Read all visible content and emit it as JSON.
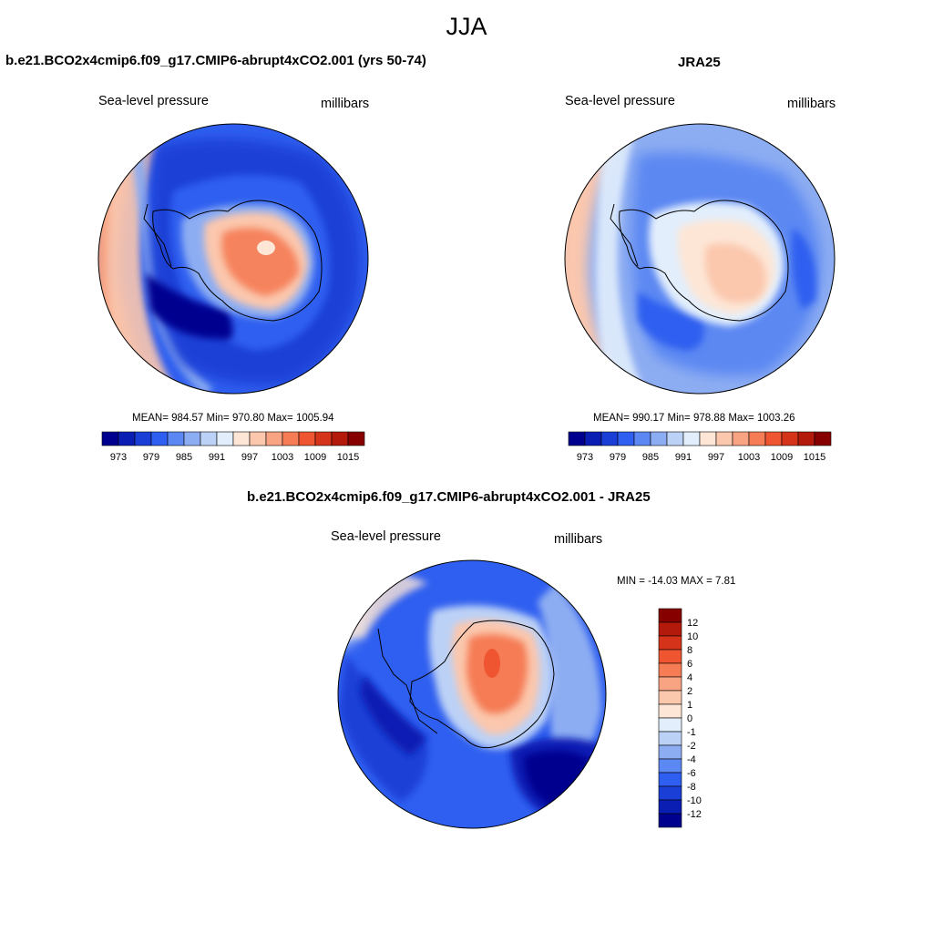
{
  "title": "JJA",
  "panels": [
    {
      "name": "model",
      "title": "b.e21.BCO2x4cmip6.f09_g17.CMIP6-abrupt4xCO2.001 (yrs 50-74)",
      "left_label": "Sea-level pressure",
      "right_label": "millibars",
      "stats": "MEAN= 984.57  Min= 970.80  Max= 1005.94",
      "colorbar": {
        "orientation": "horizontal",
        "ticks": [
          "973",
          "979",
          "985",
          "991",
          "997",
          "1003",
          "1009",
          "1015"
        ]
      }
    },
    {
      "name": "obs",
      "title": "JRA25",
      "left_label": "Sea-level pressure",
      "right_label": "millibars",
      "stats": "MEAN= 990.17  Min= 978.88  Max= 1003.26",
      "colorbar": {
        "orientation": "horizontal",
        "ticks": [
          "973",
          "979",
          "985",
          "991",
          "997",
          "1003",
          "1009",
          "1015"
        ]
      }
    },
    {
      "name": "difference",
      "title": "b.e21.BCO2x4cmip6.f09_g17.CMIP6-abrupt4xCO2.001 - JRA25",
      "left_label": "Sea-level pressure",
      "right_label": "millibars",
      "stats": "MIN = -14.03 MAX =   7.81",
      "colorbar": {
        "orientation": "vertical",
        "ticks": [
          "12",
          "10",
          "8",
          "6",
          "4",
          "2",
          "1",
          "0",
          "-1",
          "-2",
          "-4",
          "-6",
          "-8",
          "-10",
          "-12"
        ]
      }
    }
  ],
  "colors": {
    "abs_scale": [
      "#00008f",
      "#0b1eb4",
      "#1a3fd6",
      "#2f5ff0",
      "#5b88f2",
      "#8dadf2",
      "#bcd1f6",
      "#e2eefc",
      "#fde6d6",
      "#fbc7ad",
      "#f8a483",
      "#f57c55",
      "#ee5530",
      "#d5331a",
      "#b41a0c",
      "#870000"
    ],
    "diff_scale": [
      "#870000",
      "#b41a0c",
      "#d5331a",
      "#ee5530",
      "#f57c55",
      "#f8a483",
      "#fbc7ad",
      "#fde6d6",
      "#e2eefc",
      "#bcd1f6",
      "#8dadf2",
      "#5b88f2",
      "#2f5ff0",
      "#1a3fd6",
      "#0b1eb4",
      "#00008f"
    ]
  }
}
